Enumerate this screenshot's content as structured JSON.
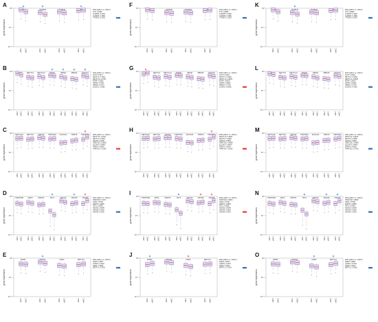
{
  "figure": {
    "y_axis_label": "gene expression",
    "y_tick_labels": [
      "10⁰",
      "10⁻⁵",
      "10⁻¹⁰"
    ],
    "colors": {
      "box_fill": "#e4dcf5",
      "box_stroke": "#7c6bb8",
      "median": "#d42f2f",
      "whisker": "#888888",
      "star_red": "#e53935",
      "star_blue": "#2f7fc1",
      "legend_up": "#e53935",
      "legend_down": "#2f6fb8"
    }
  },
  "chart_data": [
    {
      "type": "box",
      "panel": "A",
      "genes": [
        "FTO",
        "ALKBH5",
        "ALKBH3",
        "YTHDF2"
      ],
      "stars": [
        "blue",
        "blue",
        "",
        "blue"
      ],
      "legend_header": "FDR (sMCC vs. mMCC)",
      "legend_entries": [
        "FTO: 0.3098",
        "ALKBH5: 0.0302",
        "ALKBH3: 0.7880",
        "YTHDF2: 0.0362"
      ],
      "legend_color": "blue",
      "categories": [
        "sMCC",
        "mMCC",
        "sMCC",
        "mMCC",
        "sMCC",
        "mMCC",
        "sMCC",
        "mMCC"
      ],
      "medians_log10": [
        -0.4,
        -0.9,
        -1.1,
        -1.6,
        -0.9,
        -1.2,
        -0.6,
        -0.5
      ],
      "ylim_log10": [
        -10,
        0
      ]
    },
    {
      "type": "box",
      "panel": "B",
      "genes": [
        "FOXT",
        "METTL3",
        "METTL14",
        "WTAP",
        "VIRMA",
        "RBM15",
        "ZC3H13"
      ],
      "stars": [
        "",
        "",
        "",
        "blue",
        "blue",
        "blue",
        "blue"
      ],
      "legend_header": "FDR (sMCC vs. mMCC)",
      "legend_entries": [
        "FOXT: 0.5071",
        "METTL3: 0.7990",
        "METTL14: 0.7350",
        "WTAP: 0.0362",
        "VIRMA: 0.0362",
        "RBM15: 0.0214",
        "ZC3H13: 0.0362"
      ],
      "legend_color": "blue",
      "categories": [
        "sMCC",
        "mMCC",
        "sMCC",
        "mMCC",
        "sMCC",
        "mMCC",
        "sMCC",
        "mMCC",
        "sMCC",
        "mMCC",
        "sMCC",
        "mMCC",
        "sMCC",
        "mMCC"
      ],
      "medians_log10": [
        -0.5,
        -0.9,
        -1.5,
        -1.7,
        -1.3,
        -1.6,
        -1.0,
        -1.2,
        -1.4,
        -1.7,
        -1.9,
        -2.1,
        -1.1,
        -1.4
      ],
      "ylim_log10": [
        -10,
        0
      ]
    },
    {
      "type": "box",
      "panel": "C",
      "genes": [
        "METTL16",
        "METTL5",
        "NSUN2",
        "TRMT10C",
        "ZCCHC4",
        "TRMT6",
        "TRMT61A"
      ],
      "stars": [
        "",
        "",
        "",
        "",
        "",
        "",
        "red"
      ],
      "legend_header": "FDR (sMCC vs. mMCC)",
      "legend_entries": [
        "METTL16: 0.6451",
        "METTL5: 0.8460",
        "NSUN2: 0.6080",
        "TRMT10C: 0.9630",
        "ZCCHC4: 0.8891",
        "TRMT6: 0.5803",
        "TRMT61A: 0.0362"
      ],
      "legend_color": "red",
      "categories": [
        "sMCC",
        "mMCC",
        "sMCC",
        "mMCC",
        "sMCC",
        "mMCC",
        "sMCC",
        "mMCC",
        "sMCC",
        "mMCC",
        "sMCC",
        "mMCC",
        "sMCC",
        "mMCC"
      ],
      "medians_log10": [
        -1.4,
        -1.3,
        -1.6,
        -1.5,
        -1.2,
        -1.3,
        -1.5,
        -1.4,
        -2.5,
        -2.4,
        -2.0,
        -1.8,
        -1.6,
        -1.0
      ],
      "ylim_log10": [
        -10,
        0
      ]
    },
    {
      "type": "box",
      "panel": "D",
      "genes": [
        "TRMT61B",
        "NSF6",
        "DNMT1",
        "TET1",
        "NSUN2",
        "NSUN5",
        "NSUN6"
      ],
      "stars": [
        "",
        "",
        "",
        "blue",
        "",
        "blue",
        "red"
      ],
      "legend_header": "FDR (sMCC vs. mMCC)",
      "legend_entries": [
        "TRMT61B: 0.9471",
        "NSF6: 0.5780",
        "DNMT1: 0.8892",
        "TET1: 0.0362",
        "NSUN2: 0.6048",
        "NSUN5: 0.0362",
        "NSUN6: 0.0302"
      ],
      "legend_color": "blue",
      "categories": [
        "sMCC",
        "mMCC",
        "sMCC",
        "mMCC",
        "sMCC",
        "mMCC",
        "sMCC",
        "mMCC",
        "sMCC",
        "mMCC",
        "sMCC",
        "mMCC",
        "sMCC",
        "mMCC"
      ],
      "medians_log10": [
        -1.8,
        -2.0,
        -1.6,
        -1.8,
        -2.2,
        -2.1,
        -3.8,
        -4.8,
        -1.2,
        -1.5,
        -1.9,
        -1.7,
        -1.9,
        -1.1
      ],
      "ylim_log10": [
        -10,
        0
      ]
    },
    {
      "type": "box",
      "panel": "E",
      "genes": [
        "RNMT",
        "CMTR1",
        "NSD3",
        "METTL1"
      ],
      "stars": [
        "",
        "blue",
        "",
        ""
      ],
      "legend_header": "FDR (sMCC vs. mMCC)",
      "legend_entries": [
        "RNMT: 0.9887",
        "CMTR1: 0.0362",
        "NSD3: 0.8080",
        "METTL1: 0.5760"
      ],
      "legend_color": "blue",
      "categories": [
        "sMCC",
        "mMCC",
        "sMCC",
        "mMCC",
        "sMCC",
        "mMCC",
        "sMCC",
        "mMCC"
      ],
      "medians_log10": [
        -1.5,
        -1.6,
        -1.0,
        -1.3,
        -1.9,
        -2.1,
        -1.7,
        -1.5
      ],
      "ylim_log10": [
        -10,
        0
      ]
    },
    {
      "type": "box",
      "panel": "F",
      "genes": [
        "FTO",
        "ALKBH5",
        "ALKBH3",
        "YTHDF2"
      ],
      "stars": [
        "",
        "",
        "",
        ""
      ],
      "legend_header": "FDR (sMCC vs. mMCC)",
      "legend_entries": [
        "FTO: 0.9880",
        "ALKBH5: 0.6480",
        "ALKBH3: 0.7880",
        "YTHDF2: 0.3220"
      ],
      "legend_color": "blue",
      "categories": [
        "sMCC",
        "mMCC",
        "sMCC",
        "mMCC",
        "sMCC",
        "mMCC",
        "sMCC",
        "mMCC"
      ],
      "medians_log10": [
        -0.4,
        -0.6,
        -1.1,
        -1.3,
        -1.0,
        -1.2,
        -0.6,
        -0.5
      ],
      "ylim_log10": [
        -10,
        0
      ]
    },
    {
      "type": "box",
      "panel": "G",
      "genes": [
        "FOXT",
        "METTL3",
        "METTL14",
        "WTAP",
        "VIRMA",
        "RBM15",
        "ZC3H13"
      ],
      "stars": [
        "red",
        "",
        "",
        "",
        "",
        "",
        ""
      ],
      "legend_header": "FDR (sMCC vs. mMCC)",
      "legend_entries": [
        "FOXT: 0.0362",
        "METTL3: 0.9680",
        "METTL14: 0.8830",
        "WTAP: 0.9670",
        "VIRMA: 0.8860",
        "RBM15: 0.5760",
        "ZC3H13: 0.5560"
      ],
      "legend_color": "red",
      "categories": [
        "sMCC",
        "mMCC",
        "sMCC",
        "mMCC",
        "sMCC",
        "mMCC",
        "sMCC",
        "mMCC",
        "sMCC",
        "mMCC",
        "sMCC",
        "mMCC",
        "sMCC",
        "mMCC"
      ],
      "medians_log10": [
        -0.7,
        -0.4,
        -1.5,
        -1.7,
        -1.3,
        -1.5,
        -1.0,
        -1.1,
        -1.4,
        -1.6,
        -1.9,
        -2.0,
        -1.1,
        -1.3
      ],
      "ylim_log10": [
        -10,
        0
      ]
    },
    {
      "type": "box",
      "panel": "H",
      "genes": [
        "METTL16",
        "METTL5",
        "NSUN2",
        "TRMT10C",
        "ZCCHC4",
        "TRMT6",
        "TRMT61A"
      ],
      "stars": [
        "",
        "",
        "",
        "",
        "",
        "",
        "red"
      ],
      "legend_header": "FDR (sMCC vs. mMCC)",
      "legend_entries": [
        "METTL16: 0.8600",
        "METTL5: 0.8860",
        "NSUN2: 0.5800",
        "TRMT10C: 0.9680",
        "ZCCHC4: 0.8460",
        "TRMT6: 0.6080",
        "TRMT61A: 0.0362"
      ],
      "legend_color": "red",
      "categories": [
        "sMCC",
        "mMCC",
        "sMCC",
        "mMCC",
        "sMCC",
        "mMCC",
        "sMCC",
        "mMCC",
        "sMCC",
        "mMCC",
        "sMCC",
        "mMCC",
        "sMCC",
        "mMCC"
      ],
      "medians_log10": [
        -1.4,
        -1.3,
        -1.5,
        -1.4,
        -1.2,
        -1.2,
        -1.4,
        -1.5,
        -2.4,
        -2.5,
        -1.9,
        -1.8,
        -1.6,
        -1.0
      ],
      "ylim_log10": [
        -10,
        0
      ]
    },
    {
      "type": "box",
      "panel": "I",
      "genes": [
        "TRMT61B",
        "NSF6",
        "DNMT1",
        "TET1",
        "NSUN2",
        "NSUN5",
        "NSUN6"
      ],
      "stars": [
        "",
        "",
        "",
        "blue",
        "",
        "red",
        "red"
      ],
      "legend_header": "FDR (sMCC vs. mMCC)",
      "legend_entries": [
        "TRMT61B: 0.8860",
        "NSF6: 0.5780",
        "DNMT1: 0.8860",
        "TET1: 0.0362",
        "NSUN2: 0.6048",
        "NSUN5: 0.0362",
        "NSUN6: 0.0302"
      ],
      "legend_color": "red",
      "categories": [
        "sMCC",
        "mMCC",
        "sMCC",
        "mMCC",
        "sMCC",
        "mMCC",
        "sMCC",
        "mMCC",
        "sMCC",
        "mMCC",
        "sMCC",
        "mMCC",
        "sMCC",
        "mMCC"
      ],
      "medians_log10": [
        -1.8,
        -1.9,
        -1.6,
        -1.7,
        -2.1,
        -2.2,
        -3.5,
        -4.4,
        -1.2,
        -1.4,
        -1.7,
        -1.5,
        -1.9,
        -1.1
      ],
      "ylim_log10": [
        -10,
        0
      ]
    },
    {
      "type": "box",
      "panel": "J",
      "genes": [
        "RNMT",
        "CMTR1",
        "NSD3",
        "METTL1"
      ],
      "stars": [
        "blue",
        "",
        "red",
        ""
      ],
      "legend_header": "FDR (sMCC vs. mMCC)",
      "legend_entries": [
        "RNMT: 0.0362",
        "CMTR1: 0.9670",
        "NSD3: 0.0302",
        "METTL1: 0.5760"
      ],
      "legend_color": "blue",
      "categories": [
        "sMCC",
        "mMCC",
        "sMCC",
        "mMCC",
        "sMCC",
        "mMCC",
        "sMCC",
        "mMCC"
      ],
      "medians_log10": [
        -1.7,
        -1.4,
        -1.0,
        -1.2,
        -1.9,
        -2.2,
        -1.6,
        -1.5
      ],
      "ylim_log10": [
        -10,
        0
      ]
    },
    {
      "type": "box",
      "panel": "K",
      "genes": [
        "FTO",
        "ALKBH5",
        "ALKBH3",
        "YTHDF2"
      ],
      "stars": [
        "",
        "blue",
        "",
        ""
      ],
      "legend_header": "FDR (sMCC vs. mMCC)",
      "legend_entries": [
        "FTO: 0.9880",
        "ALKBH5: 0.0362",
        "ALKBH3: 0.7880",
        "YTHDF2: 0.9670"
      ],
      "legend_color": "blue",
      "categories": [
        "sMCC",
        "mMCC",
        "sMCC",
        "mMCC",
        "sMCC",
        "mMCC",
        "sMCC",
        "mMCC"
      ],
      "medians_log10": [
        -0.4,
        -0.9,
        -1.1,
        -1.5,
        -1.0,
        -1.2,
        -0.6,
        -0.5
      ],
      "ylim_log10": [
        -10,
        0
      ]
    },
    {
      "type": "box",
      "panel": "L",
      "genes": [
        "FOXT",
        "METTL3",
        "METTL14",
        "WTAP",
        "VIRMA",
        "RBM15",
        "ZC3H13"
      ],
      "stars": [
        "",
        "",
        "",
        "",
        "",
        "",
        ""
      ],
      "legend_header": "FDR (sMCC vs. mMCC)",
      "legend_entries": [
        "FOXT: 0.8600",
        "METTL3: 0.9680",
        "METTL14: 0.8830",
        "WTAP: 0.9670",
        "VIRMA: 0.8860",
        "RBM15: 0.5760",
        "ZC3H13: 0.7550"
      ],
      "legend_color": "blue",
      "categories": [
        "sMCC",
        "mMCC",
        "sMCC",
        "mMCC",
        "sMCC",
        "mMCC",
        "sMCC",
        "mMCC",
        "sMCC",
        "mMCC",
        "sMCC",
        "mMCC",
        "sMCC",
        "mMCC"
      ],
      "medians_log10": [
        -0.6,
        -0.8,
        -1.5,
        -1.7,
        -1.3,
        -1.5,
        -1.0,
        -1.1,
        -1.4,
        -1.7,
        -1.9,
        -2.0,
        -1.1,
        -1.3
      ],
      "ylim_log10": [
        -10,
        0
      ]
    },
    {
      "type": "box",
      "panel": "M",
      "genes": [
        "METTL16",
        "METTL5",
        "NSUN2",
        "TRMT10C",
        "ZCCHC4",
        "TRMT6",
        "TRMT61A"
      ],
      "stars": [
        "",
        "",
        "",
        "",
        "",
        "",
        ""
      ],
      "legend_header": "FDR (sMCC vs. mMCC)",
      "legend_entries": [
        "METTL16: 0.8600",
        "METTL5: 0.8860",
        "NSUN2: 0.5800",
        "TRMT10C: 0.9680",
        "ZCCHC4: 0.8460",
        "TRMT6: 0.6080",
        "TRMT61A: 0.5760"
      ],
      "legend_color": "blue",
      "categories": [
        "sMCC",
        "mMCC",
        "sMCC",
        "mMCC",
        "sMCC",
        "mMCC",
        "sMCC",
        "mMCC",
        "sMCC",
        "mMCC",
        "sMCC",
        "mMCC",
        "sMCC",
        "mMCC"
      ],
      "medians_log10": [
        -1.4,
        -1.3,
        -1.5,
        -1.4,
        -1.2,
        -1.3,
        -1.5,
        -1.4,
        -2.5,
        -2.4,
        -1.9,
        -1.8,
        -1.5,
        -1.3
      ],
      "ylim_log10": [
        -10,
        0
      ]
    },
    {
      "type": "box",
      "panel": "N",
      "genes": [
        "TRMT61B",
        "NSF6",
        "DNMT1",
        "TET1",
        "NSUN2",
        "NSUN5",
        "NSUN6"
      ],
      "stars": [
        "",
        "",
        "",
        "blue",
        "",
        "blue",
        "blue"
      ],
      "legend_header": "FDR (sMCC vs. mMCC)",
      "legend_entries": [
        "TRMT61B: 0.8860",
        "NSF6: 0.5780",
        "DNMT1: 0.8860",
        "TET1: 0.0362",
        "NSUN2: 0.6048",
        "NSUN5: 0.0362",
        "NSUN6: 0.0302"
      ],
      "legend_color": "blue",
      "categories": [
        "sMCC",
        "mMCC",
        "sMCC",
        "mMCC",
        "sMCC",
        "mMCC",
        "sMCC",
        "mMCC",
        "sMCC",
        "mMCC",
        "sMCC",
        "mMCC",
        "sMCC",
        "mMCC"
      ],
      "medians_log10": [
        -1.8,
        -2.0,
        -1.6,
        -1.8,
        -2.1,
        -2.2,
        -3.6,
        -4.6,
        -1.2,
        -1.4,
        -1.8,
        -1.6,
        -1.9,
        -1.2
      ],
      "ylim_log10": [
        -10,
        0
      ]
    },
    {
      "type": "box",
      "panel": "O",
      "genes": [
        "RNMT",
        "CMTR1",
        "NSD3",
        "METTL1"
      ],
      "stars": [
        "",
        "",
        "blue",
        "blue"
      ],
      "legend_header": "FDR (sMCC vs. mMCC)",
      "legend_entries": [
        "RNMT: 0.9887",
        "CMTR1: 0.5760",
        "NSD3: 0.0362",
        "METTL1: 0.0362"
      ],
      "legend_color": "blue",
      "categories": [
        "sMCC",
        "mMCC",
        "sMCC",
        "mMCC",
        "sMCC",
        "mMCC",
        "sMCC",
        "mMCC"
      ],
      "medians_log10": [
        -1.5,
        -1.6,
        -1.0,
        -1.2,
        -2.0,
        -2.3,
        -1.7,
        -1.4
      ],
      "ylim_log10": [
        -10,
        0
      ]
    }
  ]
}
